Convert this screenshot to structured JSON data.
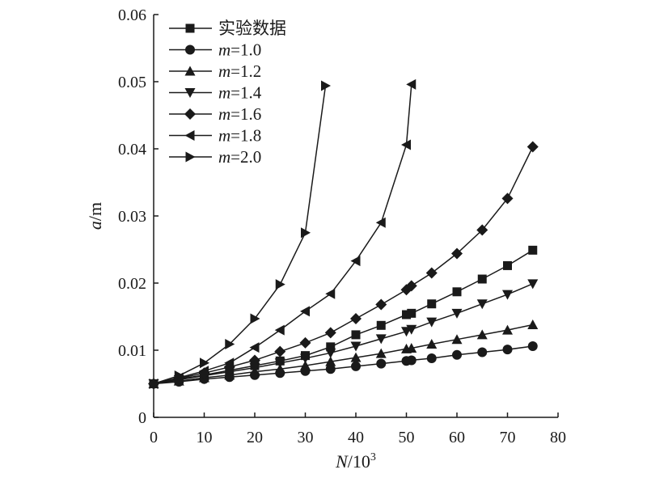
{
  "chart_data": {
    "type": "line",
    "xlabel": {
      "var": "N",
      "rest": "/10",
      "sup": "3"
    },
    "ylabel": {
      "var": "a",
      "rest": "/m"
    },
    "xlim": [
      0,
      80
    ],
    "ylim": [
      0,
      0.06
    ],
    "xticks": [
      "0",
      "10",
      "20",
      "30",
      "40",
      "50",
      "60",
      "70",
      "80"
    ],
    "yticks": [
      "0",
      "0.01",
      "0.02",
      "0.03",
      "0.04",
      "0.05",
      "0.06"
    ],
    "grid": false,
    "legend_position": "top-left",
    "series": [
      {
        "name": "实验数据",
        "label_var": "",
        "label_rest": "实验数据",
        "marker": "square",
        "x": [
          0,
          5,
          10,
          15,
          20,
          25,
          30,
          35,
          40,
          45,
          50,
          51,
          55,
          60,
          65,
          70,
          75
        ],
        "y": [
          0.005,
          0.0057,
          0.0063,
          0.007,
          0.0077,
          0.0084,
          0.0092,
          0.0105,
          0.0123,
          0.0137,
          0.0153,
          0.0155,
          0.0169,
          0.0187,
          0.0206,
          0.0226,
          0.0249
        ]
      },
      {
        "name": "m=1.0",
        "label_var": "m",
        "label_rest": "=1.0",
        "marker": "circle",
        "x": [
          0,
          5,
          10,
          15,
          20,
          25,
          30,
          35,
          40,
          45,
          50,
          51,
          55,
          60,
          65,
          70,
          75
        ],
        "y": [
          0.005,
          0.0053,
          0.0057,
          0.006,
          0.0063,
          0.0066,
          0.0069,
          0.0072,
          0.0076,
          0.008,
          0.0084,
          0.0085,
          0.0088,
          0.0093,
          0.0097,
          0.0101,
          0.0106
        ]
      },
      {
        "name": "m=1.2",
        "label_var": "m",
        "label_rest": "=1.2",
        "marker": "triangle-up",
        "x": [
          0,
          5,
          10,
          15,
          20,
          25,
          30,
          35,
          40,
          45,
          50,
          51,
          55,
          60,
          65,
          70,
          75
        ],
        "y": [
          0.005,
          0.0054,
          0.0059,
          0.0063,
          0.0068,
          0.0072,
          0.0077,
          0.0083,
          0.0089,
          0.0095,
          0.0102,
          0.0103,
          0.0109,
          0.0116,
          0.0123,
          0.013,
          0.0138
        ]
      },
      {
        "name": "m=1.4",
        "label_var": "m",
        "label_rest": "=1.4",
        "marker": "triangle-down",
        "x": [
          0,
          5,
          10,
          15,
          20,
          25,
          30,
          35,
          40,
          45,
          50,
          51,
          55,
          60,
          65,
          70,
          75
        ],
        "y": [
          0.005,
          0.0056,
          0.0062,
          0.0068,
          0.0074,
          0.0081,
          0.0088,
          0.0096,
          0.0106,
          0.0117,
          0.0128,
          0.0131,
          0.0142,
          0.0155,
          0.0169,
          0.0183,
          0.0199
        ]
      },
      {
        "name": "m=1.6",
        "label_var": "m",
        "label_rest": "=1.6",
        "marker": "diamond",
        "x": [
          0,
          5,
          10,
          15,
          20,
          25,
          30,
          35,
          40,
          45,
          50,
          51,
          55,
          60,
          65,
          70,
          75
        ],
        "y": [
          0.005,
          0.0058,
          0.0066,
          0.0075,
          0.0085,
          0.0098,
          0.0111,
          0.0126,
          0.0147,
          0.0168,
          0.019,
          0.0196,
          0.0215,
          0.0244,
          0.0279,
          0.0326,
          0.0403
        ]
      },
      {
        "name": "m=1.8",
        "label_var": "m",
        "label_rest": "=1.8",
        "marker": "triangle-left",
        "x": [
          0,
          5,
          10,
          15,
          20,
          25,
          30,
          35,
          40,
          45,
          50,
          51
        ],
        "y": [
          0.005,
          0.0059,
          0.0069,
          0.0081,
          0.0104,
          0.013,
          0.0158,
          0.0184,
          0.0233,
          0.029,
          0.0406,
          0.0496
        ]
      },
      {
        "name": "m=2.0",
        "label_var": "m",
        "label_rest": "=2.0",
        "marker": "triangle-right",
        "x": [
          0,
          5,
          10,
          15,
          20,
          25,
          30,
          34
        ],
        "y": [
          0.005,
          0.0062,
          0.0081,
          0.0109,
          0.0147,
          0.0198,
          0.0275,
          0.0494
        ]
      }
    ]
  }
}
